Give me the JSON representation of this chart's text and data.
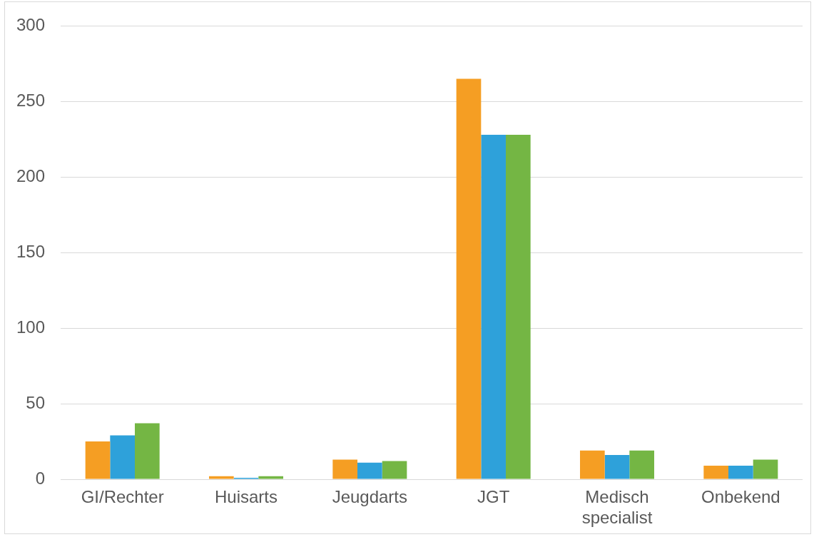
{
  "chart_data": {
    "type": "bar",
    "categories": [
      "GI/Rechter",
      "Huisarts",
      "Jeugdarts",
      "JGT",
      "Medisch specialist",
      "Onbekend"
    ],
    "series": [
      {
        "color": "#f59e23",
        "values": [
          25,
          2,
          13,
          265,
          19,
          9
        ]
      },
      {
        "color": "#2ea1da",
        "values": [
          29,
          1,
          11,
          228,
          16,
          9
        ]
      },
      {
        "color": "#74b644",
        "values": [
          37,
          2,
          12,
          228,
          19,
          13
        ]
      }
    ],
    "ylim": [
      0,
      300
    ],
    "yticks": [
      0,
      50,
      100,
      150,
      200,
      250,
      300
    ],
    "grid": "y"
  }
}
